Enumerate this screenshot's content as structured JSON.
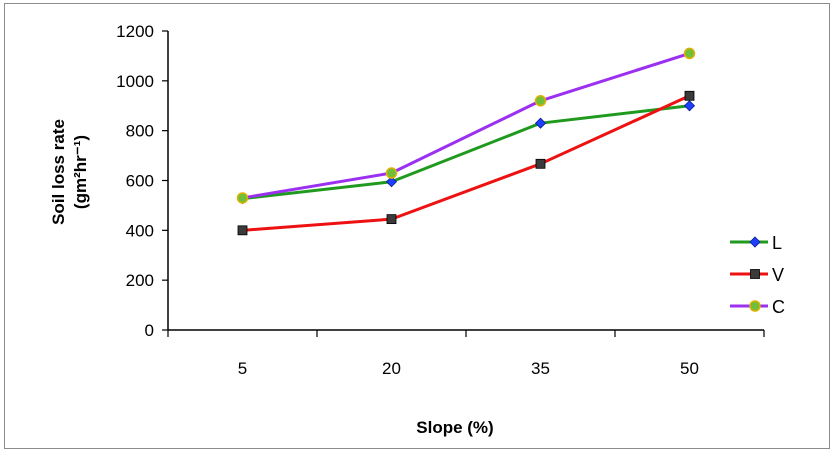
{
  "chart_data": {
    "type": "line",
    "categories": [
      "5",
      "20",
      "35",
      "50"
    ],
    "series": [
      {
        "name": "L",
        "values": [
          527,
          595,
          830,
          900
        ],
        "color": "#1f9a1f",
        "marker": "diamond",
        "marker_color": "#1f3fff"
      },
      {
        "name": "V",
        "values": [
          400,
          445,
          667,
          940
        ],
        "color": "#ee1111",
        "marker": "square",
        "marker_color": "#3a3a3a"
      },
      {
        "name": "C",
        "values": [
          530,
          630,
          920,
          1110
        ],
        "color": "#9b30f0",
        "marker": "circle",
        "marker_color": "#6fbf3a"
      }
    ],
    "xlabel": "Slope (%)",
    "ylabel_line1": "Soil loss rate",
    "ylabel_line2": "(gm²hr⁻¹)",
    "ylim": [
      0,
      1200
    ],
    "yticks": [
      "0",
      "200",
      "400",
      "600",
      "800",
      "1000",
      "1200"
    ],
    "grid": false,
    "legend_position": "right"
  }
}
